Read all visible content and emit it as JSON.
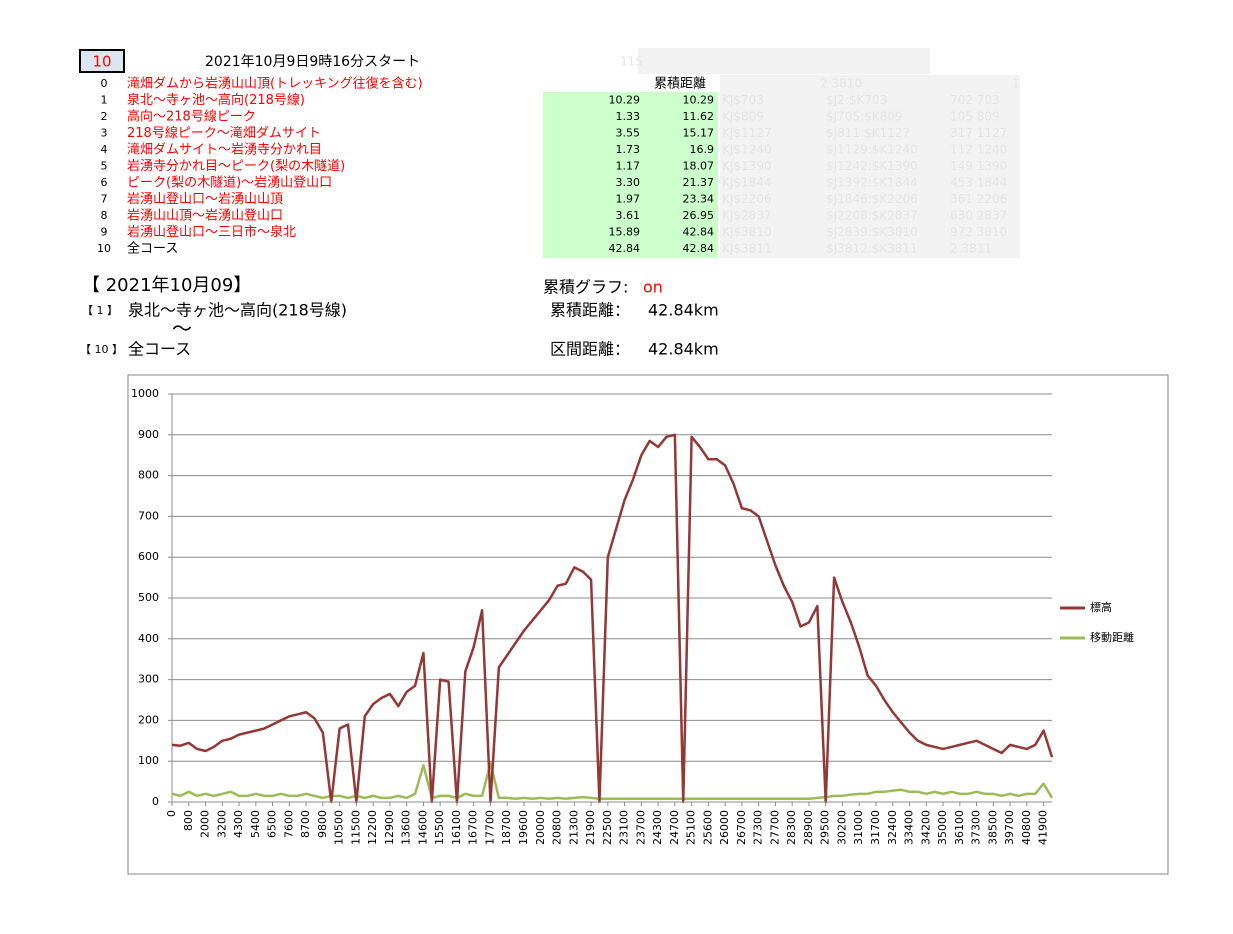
{
  "selector": "10",
  "start_title": "2021年10月9日9時16分スタート",
  "table": {
    "header": "累積距離",
    "ghost_header": [
      "115",
      "2 3810",
      "1"
    ],
    "rows": [
      {
        "no": "0",
        "name": "滝畑ダムから岩湧山山頂(トレッキング往復を含む)"
      },
      {
        "no": "1",
        "name": "泉北～寺ヶ池～高向(218号線)",
        "section": "10.29",
        "cumulative": "10.29",
        "ghost": [
          "KJ$703",
          "$J2:$K703",
          "702 703"
        ]
      },
      {
        "no": "2",
        "name": "高向～218号線ピーク",
        "section": "1.33",
        "cumulative": "11.62",
        "ghost": [
          "KJ$809",
          "$J705:$K809",
          "105 809"
        ]
      },
      {
        "no": "3",
        "name": "218号線ピーク～滝畑ダムサイト",
        "section": "3.55",
        "cumulative": "15.17",
        "ghost": [
          "KJ$1127",
          "$J811:$K1127",
          "317 1127"
        ]
      },
      {
        "no": "4",
        "name": "滝畑ダムサイト～岩湧寺分かれ目",
        "section": "1.73",
        "cumulative": "16.9",
        "ghost": [
          "KJ$1240",
          "$J1129:$K1240",
          "112 1240"
        ]
      },
      {
        "no": "5",
        "name": "岩湧寺分かれ目～ピーク(梨の木隧道)",
        "section": "1.17",
        "cumulative": "18.07",
        "ghost": [
          "KJ$1390",
          "$J1242:$K1390",
          "149 1390"
        ]
      },
      {
        "no": "6",
        "name": "ピーク(梨の木隧道)～岩湧山登山口",
        "section": "3.30",
        "cumulative": "21.37",
        "ghost": [
          "KJ$1844",
          "$J1392:$K1844",
          "453 1844"
        ]
      },
      {
        "no": "7",
        "name": "岩湧山登山口～岩湧山山頂",
        "section": "1.97",
        "cumulative": "23.34",
        "ghost": [
          "KJ$2206",
          "$J1846:$K2206",
          "361 2206"
        ]
      },
      {
        "no": "8",
        "name": "岩湧山山頂～岩湧山登山口",
        "section": "3.61",
        "cumulative": "26.95",
        "ghost": [
          "KJ$2837",
          "$J2208:$K2837",
          "630 2837"
        ]
      },
      {
        "no": "9",
        "name": "岩湧山登山口～三日市～泉北",
        "section": "15.89",
        "cumulative": "42.84",
        "ghost": [
          "KJ$3810",
          "$J2839:$K3810",
          "972 3810"
        ]
      },
      {
        "no": "10",
        "name": "全コース",
        "section": "42.84",
        "cumulative": "42.84",
        "ghost": [
          "KJ$3811",
          "$J3812:$K3811",
          "2 3811"
        ]
      }
    ]
  },
  "summary": {
    "date": "【 2021年10月09】",
    "from_no": "【 1 】",
    "from_name": "泉北～寺ヶ池～高向(218号線)",
    "tilde": "～",
    "to_no": "【 10 】",
    "to_name": "全コース",
    "graph_label": "累積グラフ:",
    "graph_state": "on",
    "cum_label": "累積距離：",
    "cum_value": "42.84km",
    "sec_label": "区間距離：",
    "sec_value": "42.84km"
  },
  "chart_data": {
    "type": "line",
    "legend": "right",
    "grid": true,
    "ylim": [
      0,
      1000
    ],
    "yticks": [
      0,
      100,
      200,
      300,
      400,
      500,
      600,
      700,
      800,
      900,
      1000
    ],
    "categories": [
      0,
      null,
      800,
      null,
      2000,
      null,
      3200,
      null,
      4300,
      null,
      5400,
      null,
      6500,
      null,
      7600,
      null,
      8700,
      null,
      9800,
      null,
      10500,
      null,
      11500,
      null,
      12200,
      null,
      12900,
      null,
      13600,
      null,
      14600,
      null,
      15500,
      null,
      16100,
      null,
      16700,
      null,
      17700,
      null,
      18700,
      null,
      19600,
      null,
      20000,
      null,
      20800,
      null,
      21300,
      null,
      21900,
      null,
      22500,
      null,
      23100,
      null,
      23700,
      null,
      24300,
      null,
      24700,
      null,
      25100,
      null,
      25600,
      null,
      26000,
      null,
      26700,
      null,
      27300,
      null,
      27700,
      null,
      28300,
      null,
      28900,
      null,
      29500,
      null,
      30200,
      null,
      31000,
      null,
      31700,
      null,
      32400,
      null,
      33400,
      null,
      34200,
      null,
      35000,
      null,
      36100,
      null,
      37300,
      null,
      38500,
      null,
      39700,
      null,
      40800,
      null,
      41900,
      null
    ],
    "series": [
      {
        "name": "標高",
        "color": "#953735",
        "values": [
          140,
          138,
          145,
          130,
          125,
          135,
          150,
          155,
          165,
          170,
          175,
          180,
          190,
          200,
          210,
          215,
          220,
          205,
          170,
          0,
          180,
          190,
          0,
          210,
          240,
          255,
          265,
          235,
          270,
          285,
          365,
          0,
          300,
          295,
          0,
          320,
          380,
          470,
          0,
          330,
          360,
          390,
          420,
          445,
          470,
          495,
          530,
          535,
          575,
          565,
          545,
          0,
          600,
          670,
          740,
          790,
          850,
          885,
          870,
          895,
          900,
          0,
          895,
          870,
          840,
          840,
          825,
          780,
          720,
          715,
          700,
          640,
          580,
          530,
          490,
          430,
          440,
          480,
          0,
          550,
          490,
          440,
          380,
          310,
          285,
          250,
          220,
          195,
          170,
          150,
          140,
          135,
          130,
          135,
          140,
          145,
          150,
          140,
          130,
          120,
          140,
          135,
          130,
          140,
          175,
          110
        ]
      },
      {
        "name": "移動距離",
        "color": "#9bbb59",
        "values": [
          20,
          15,
          25,
          15,
          20,
          15,
          20,
          25,
          15,
          15,
          20,
          15,
          15,
          20,
          15,
          15,
          20,
          15,
          10,
          15,
          15,
          10,
          15,
          10,
          15,
          10,
          10,
          15,
          10,
          20,
          90,
          10,
          15,
          15,
          10,
          20,
          15,
          15,
          95,
          10,
          10,
          8,
          10,
          8,
          10,
          8,
          10,
          8,
          10,
          12,
          10,
          8,
          8,
          8,
          8,
          8,
          8,
          8,
          8,
          8,
          8,
          8,
          8,
          8,
          8,
          8,
          8,
          8,
          8,
          8,
          8,
          8,
          8,
          8,
          8,
          8,
          8,
          10,
          12,
          15,
          15,
          18,
          20,
          20,
          25,
          25,
          28,
          30,
          25,
          25,
          20,
          25,
          20,
          25,
          20,
          20,
          25,
          20,
          20,
          15,
          20,
          15,
          20,
          20,
          45,
          10
        ]
      }
    ]
  }
}
